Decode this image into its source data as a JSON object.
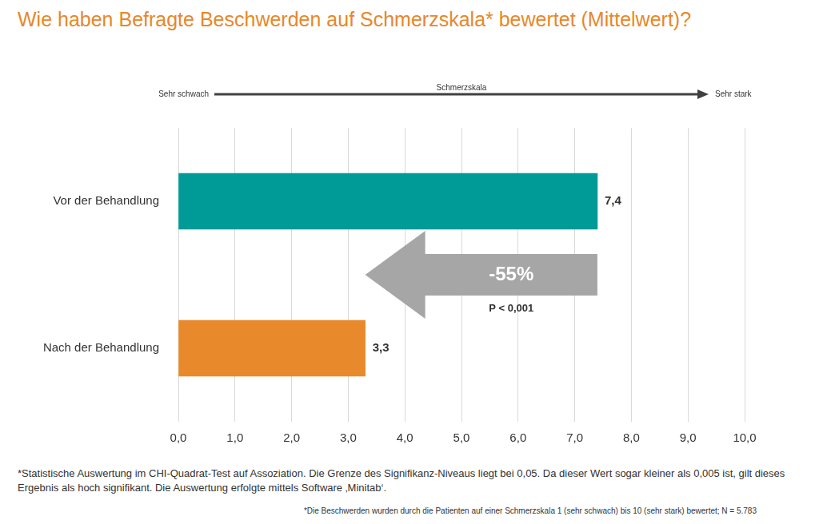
{
  "chart_data": {
    "type": "bar",
    "orientation": "horizontal",
    "title": "Wie haben Befragte Beschwerden auf Schmerzskala* bewertet (Mittelwert)?",
    "xlabel": "Schmerzskala",
    "annotations": {
      "scale_start": "Sehr schwach",
      "scale_end": "Sehr stark",
      "change": "-55%",
      "p_value": "P < 0,001"
    },
    "footnotes": [
      "*Statistische Auswertung im CHI-Quadrat-Test auf Assoziation. Die Grenze des Signifikanz-Niveaus liegt bei 0,05. Da dieser Wert sogar kleiner als 0,005 ist, gilt dieses Ergebnis als hoch signifikant. Die Auswertung erfolgte mittels Software ‚Minitab‘.",
      "*Die Beschwerden wurden durch die Patienten auf einer Schmerzskala 1 (sehr schwach) bis 10 (sehr stark) bewertet; N = 5.783"
    ],
    "categories": [
      "Vor der Behandlung",
      "Nach der Behandlung"
    ],
    "values": [
      7.4,
      3.3
    ],
    "value_labels": [
      "7,4",
      "3,3"
    ],
    "data_labels": true,
    "colors": [
      "#009a97",
      "#e8892b"
    ],
    "xlim": [
      0,
      10
    ],
    "xticks": [
      {
        "value": 0,
        "label": "0,0"
      },
      {
        "value": 1,
        "label": "1,0"
      },
      {
        "value": 2,
        "label": "2,0"
      },
      {
        "value": 3,
        "label": "3,0"
      },
      {
        "value": 4,
        "label": "4,0"
      },
      {
        "value": 5,
        "label": "5,0"
      },
      {
        "value": 6,
        "label": "6,0"
      },
      {
        "value": 7,
        "label": "7,0"
      },
      {
        "value": 8,
        "label": "8,0"
      },
      {
        "value": 9,
        "label": "9,0"
      },
      {
        "value": 10,
        "label": "10,0"
      }
    ],
    "grid": true
  }
}
